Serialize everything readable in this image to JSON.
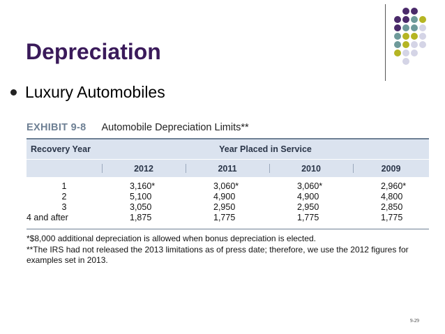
{
  "slide": {
    "title": "Depreciation",
    "bullet": "Luxury Automobiles",
    "page_number": "9-29"
  },
  "exhibit": {
    "number": "EXHIBIT 9-8",
    "title": "Automobile Depreciation Limits**",
    "col_header_left": "Recovery Year",
    "col_header_span": "Year Placed in Service",
    "years": [
      "2012",
      "2011",
      "2010",
      "2009"
    ],
    "rows": [
      {
        "label": "1",
        "values": [
          "3,160*",
          "3,060*",
          "3,060*",
          "2,960*"
        ]
      },
      {
        "label": "2",
        "values": [
          "5,100",
          "4,900",
          "4,900",
          "4,800"
        ]
      },
      {
        "label": "3",
        "values": [
          "3,050",
          "2,950",
          "2,950",
          "2,850"
        ]
      },
      {
        "label": "4 and after",
        "values": [
          "1,875",
          "1,775",
          "1,775",
          "1,775"
        ]
      }
    ],
    "footnote_1": "*$8,000 additional depreciation is allowed when bonus depreciation is elected.",
    "footnote_2a": "**The IRS had not released the 2013 limitations as of press date; therefore, we use the 2012 figures for",
    "footnote_2b": "examples set in 2013."
  },
  "decor_colors": {
    "purple": "#4a2a6a",
    "teal": "#6e9a9a",
    "olive": "#b5b523",
    "lavender": "#d4d4e6"
  }
}
